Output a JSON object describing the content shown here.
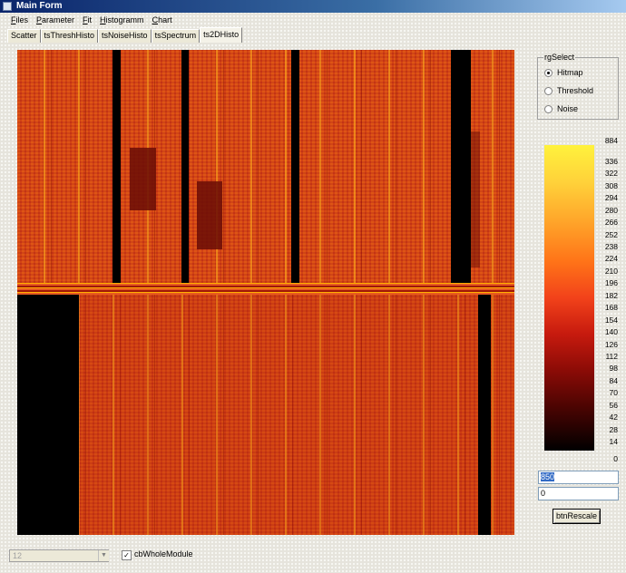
{
  "window": {
    "title": "Main Form"
  },
  "menu": [
    "Files",
    "Parameter",
    "Fit",
    "Histogramm",
    "Chart"
  ],
  "tabs": [
    "Scatter",
    "tsThreshHisto",
    "tsNoiseHisto",
    "tsSpectrum",
    "ts2DHisto"
  ],
  "radio_group": {
    "title": "rgSelect",
    "options": [
      "Hitmap",
      "Threshold",
      "Noise"
    ]
  },
  "colorbar": {
    "labels": [
      884,
      336,
      322,
      308,
      294,
      280,
      266,
      252,
      238,
      224,
      210,
      196,
      182,
      168,
      154,
      140,
      126,
      112,
      98,
      84,
      70,
      56,
      42,
      28,
      14,
      0
    ]
  },
  "inputs": [
    "850",
    "0"
  ],
  "button": "btnRescale",
  "combo": "12",
  "checkbox": "cbWholeModule"
}
